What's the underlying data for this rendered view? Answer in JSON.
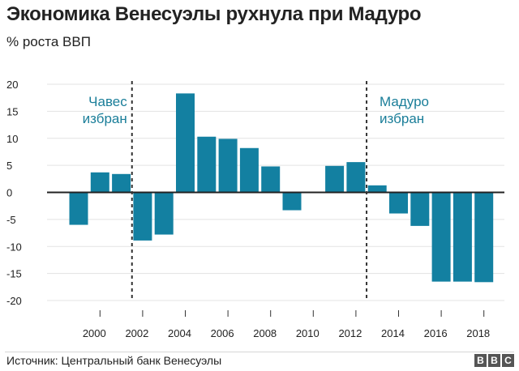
{
  "header": {
    "title": "Экономика Венесуэлы рухнула при Мадуро",
    "subtitle": "% роста ВВП"
  },
  "footer": {
    "source": "Источник: Центральный банк Венесуэлы",
    "logo_letters": [
      "B",
      "B",
      "C"
    ]
  },
  "colors": {
    "bar": "#1380a1",
    "annotation": "#1a7e99",
    "grid": "#e3e3e3",
    "zero_line": "#222222",
    "divider": "#333333"
  },
  "chart_data": {
    "type": "bar",
    "title": "Экономика Венесуэлы рухнула при Мадуро",
    "subtitle": "% роста ВВП",
    "xlabel": "",
    "ylabel": "",
    "x": [
      1999,
      2000,
      2001,
      2002,
      2003,
      2004,
      2005,
      2006,
      2007,
      2008,
      2009,
      2010,
      2011,
      2012,
      2013,
      2014,
      2015,
      2016,
      2017,
      2018
    ],
    "values": [
      -6.0,
      3.7,
      3.4,
      -8.9,
      -7.8,
      18.3,
      10.3,
      9.9,
      8.2,
      4.8,
      -3.3,
      0.1,
      4.9,
      5.6,
      1.3,
      -3.9,
      -6.2,
      -16.5,
      -16.5,
      -16.6
    ],
    "ylim": [
      -20,
      20
    ],
    "yticks": [
      20,
      15,
      10,
      5,
      0,
      -5,
      -10,
      -15,
      -20
    ],
    "yticklabels": [
      "20",
      "15",
      "10",
      "5",
      "0",
      "-5",
      "-10",
      "-15",
      "-20"
    ],
    "xticks": [
      2000,
      2002,
      2004,
      2006,
      2008,
      2010,
      2012,
      2014,
      2016,
      2018
    ],
    "xticklabels": [
      "2000",
      "2002",
      "2004",
      "2006",
      "2008",
      "2010",
      "2012",
      "2014",
      "2016",
      "2018"
    ],
    "grid": true,
    "annotations": [
      {
        "lines": [
          "Чавес",
          "избран"
        ],
        "x": 2001.5
      },
      {
        "lines": [
          "Мадуро",
          "избран"
        ],
        "x": 2012.5
      }
    ]
  }
}
